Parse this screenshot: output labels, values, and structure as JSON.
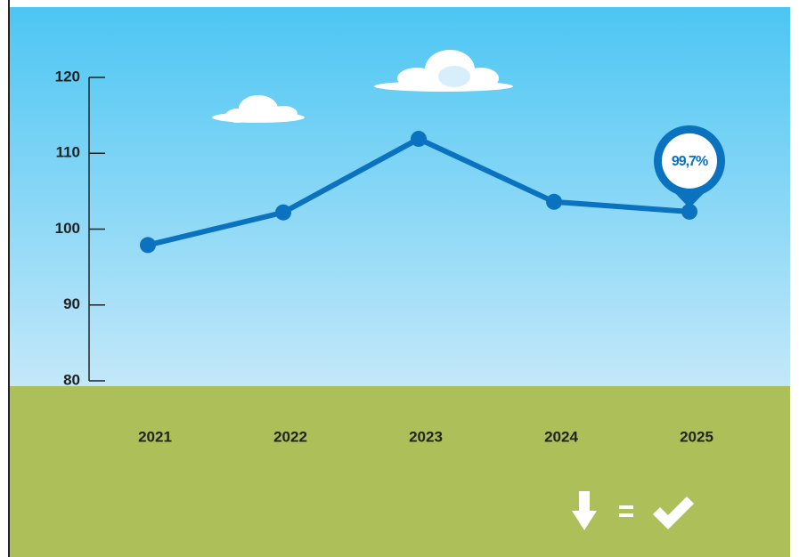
{
  "chart_data": {
    "type": "line",
    "categories": [
      "2021",
      "2022",
      "2023",
      "2024",
      "2025"
    ],
    "values": [
      97.9,
      102.2,
      111.9,
      103.6,
      102.3
    ],
    "color": "#0a72bf",
    "annotation": "99,7%",
    "ylim": [
      80,
      120
    ],
    "yticks": [
      80,
      90,
      100,
      110,
      120
    ]
  }
}
